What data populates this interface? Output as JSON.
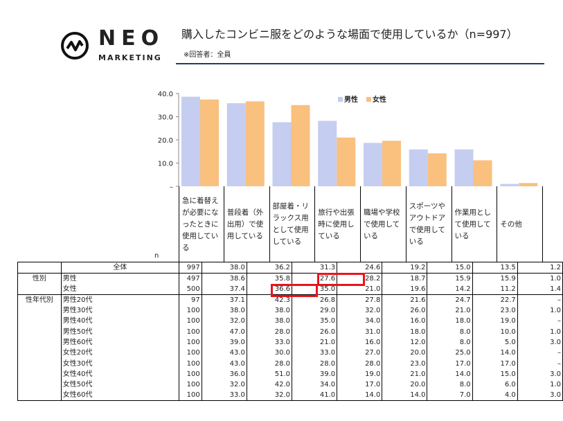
{
  "brand": {
    "name": "NEO",
    "sub": "MARKETING",
    "mark": "neo-wave-icon"
  },
  "header": {
    "title": "購入したコンビニ服をどのような場面で使用しているか（n=997）",
    "note": "※回答者：全員"
  },
  "chart_data": {
    "type": "bar",
    "categories": [
      "急に着替えが必要になったときに使用している",
      "普段着（外出用）で使用している",
      "部屋着・リラックス用として使用している",
      "旅行や出張時に使用している",
      "職場や学校で使用している",
      "スポーツやアウトドアで使用している",
      "作業用として使用している",
      "その他"
    ],
    "series": [
      {
        "name": "男性",
        "color": "#c5cdf0",
        "values": [
          38.6,
          35.8,
          27.6,
          28.2,
          18.7,
          15.9,
          15.9,
          1.0
        ]
      },
      {
        "name": "女性",
        "color": "#f9c07e",
        "values": [
          37.4,
          36.6,
          35.0,
          21.0,
          19.6,
          14.2,
          11.2,
          1.4
        ]
      }
    ],
    "ylim": [
      0,
      40
    ],
    "yticks": [
      "–",
      "10.0",
      "20.0",
      "30.0",
      "40.0"
    ],
    "legend": "top-right",
    "n_label": "n"
  },
  "table": {
    "rows": [
      {
        "g1": "",
        "g2": "全体",
        "n": "997",
        "v": [
          "38.0",
          "36.2",
          "31.3",
          "24.6",
          "19.2",
          "15.0",
          "13.5",
          "1.2"
        ]
      },
      {
        "g1": "性別",
        "g2": "男性",
        "n": "497",
        "v": [
          "38.6",
          "35.8",
          "27.6",
          "28.2",
          "18.7",
          "15.9",
          "15.9",
          "1.0"
        ]
      },
      {
        "g1": "",
        "g2": "女性",
        "n": "500",
        "v": [
          "37.4",
          "36.6",
          "35.0",
          "21.0",
          "19.6",
          "14.2",
          "11.2",
          "1.4"
        ]
      },
      {
        "g1": "性年代別",
        "g2": "男性20代",
        "n": "97",
        "v": [
          "37.1",
          "42.3",
          "26.8",
          "27.8",
          "21.6",
          "24.7",
          "22.7",
          "–"
        ]
      },
      {
        "g1": "",
        "g2": "男性30代",
        "n": "100",
        "v": [
          "38.0",
          "38.0",
          "29.0",
          "32.0",
          "26.0",
          "21.0",
          "23.0",
          "1.0"
        ]
      },
      {
        "g1": "",
        "g2": "男性40代",
        "n": "100",
        "v": [
          "32.0",
          "38.0",
          "35.0",
          "34.0",
          "16.0",
          "18.0",
          "19.0",
          "–"
        ]
      },
      {
        "g1": "",
        "g2": "男性50代",
        "n": "100",
        "v": [
          "47.0",
          "28.0",
          "26.0",
          "31.0",
          "18.0",
          "8.0",
          "10.0",
          "1.0"
        ]
      },
      {
        "g1": "",
        "g2": "男性60代",
        "n": "100",
        "v": [
          "39.0",
          "33.0",
          "21.0",
          "16.0",
          "12.0",
          "8.0",
          "5.0",
          "3.0"
        ]
      },
      {
        "g1": "",
        "g2": "女性20代",
        "n": "100",
        "v": [
          "43.0",
          "30.0",
          "33.0",
          "27.0",
          "20.0",
          "25.0",
          "14.0",
          "–"
        ]
      },
      {
        "g1": "",
        "g2": "女性30代",
        "n": "100",
        "v": [
          "43.0",
          "28.0",
          "28.0",
          "28.0",
          "23.0",
          "17.0",
          "17.0",
          "–"
        ]
      },
      {
        "g1": "",
        "g2": "女性40代",
        "n": "100",
        "v": [
          "36.0",
          "51.0",
          "39.0",
          "19.0",
          "21.0",
          "14.0",
          "15.0",
          "3.0"
        ]
      },
      {
        "g1": "",
        "g2": "女性50代",
        "n": "100",
        "v": [
          "32.0",
          "42.0",
          "34.0",
          "17.0",
          "20.0",
          "8.0",
          "6.0",
          "1.0"
        ]
      },
      {
        "g1": "",
        "g2": "女性60代",
        "n": "100",
        "v": [
          "33.0",
          "32.0",
          "41.0",
          "14.0",
          "14.0",
          "7.0",
          "4.0",
          "3.0"
        ]
      }
    ],
    "highlight_color": "#e8141c"
  }
}
